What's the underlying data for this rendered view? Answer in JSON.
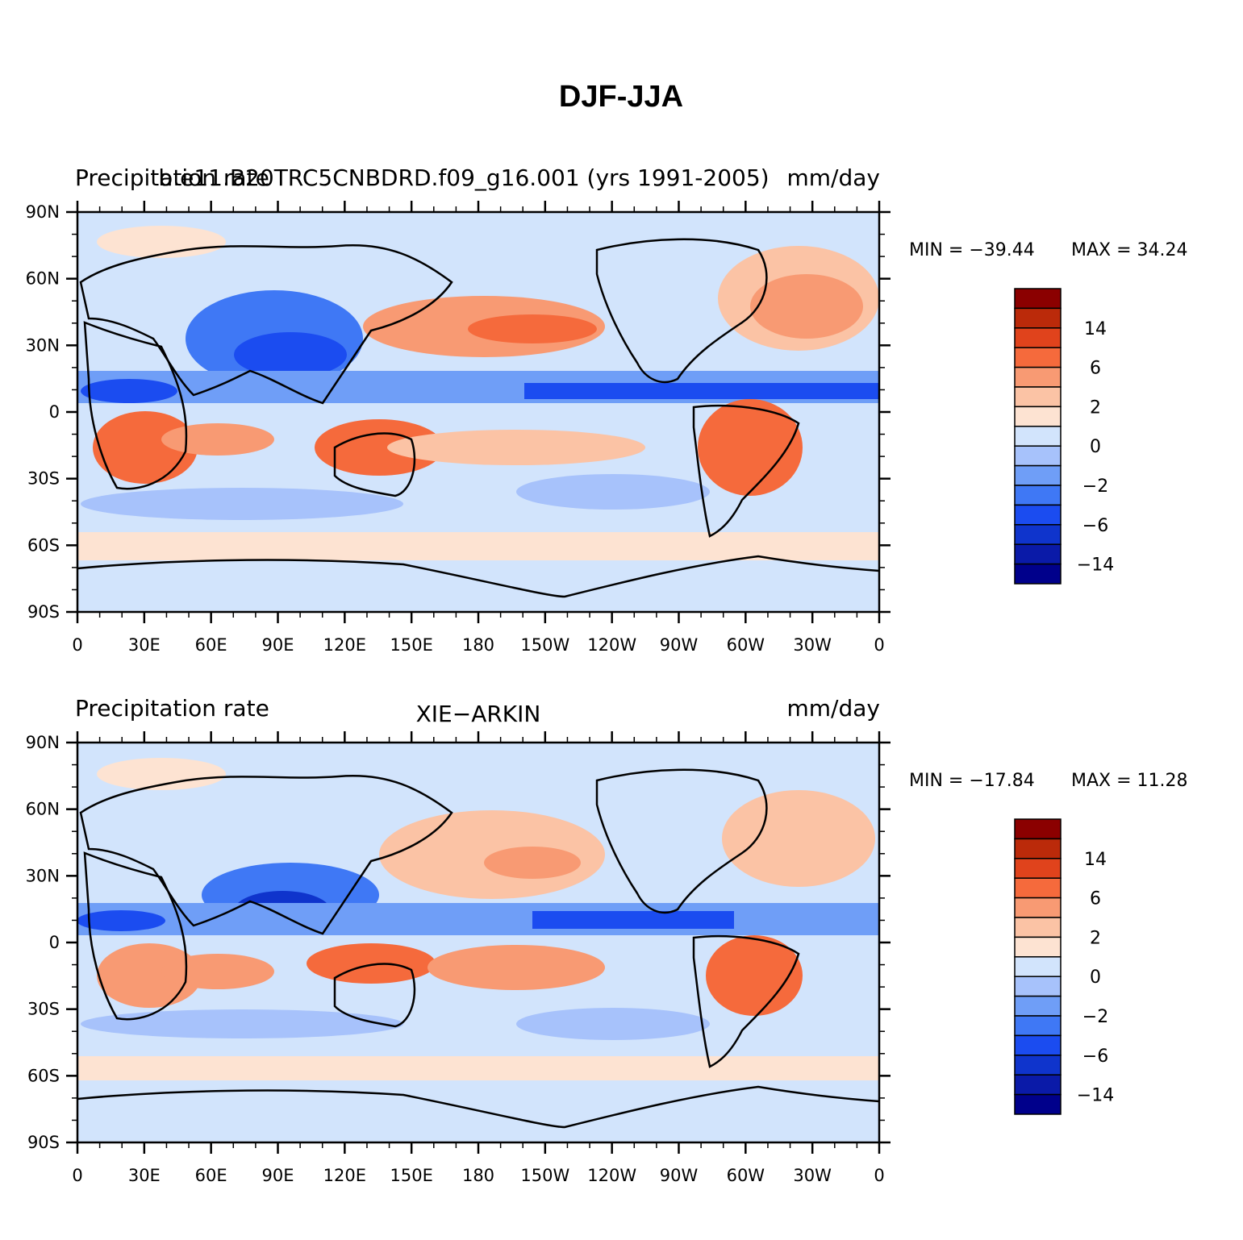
{
  "figure": {
    "title": "DJF-JJA"
  },
  "colors": {
    "levels_palette": [
      "#00008b",
      "#0a1aa8",
      "#0f34cc",
      "#1b4cf0",
      "#3f78f5",
      "#6f9ef7",
      "#a7c2fb",
      "#d2e4fc",
      "#fde3d2",
      "#fbc3a5",
      "#f89a73",
      "#f56a3c",
      "#e0431c",
      "#bb2a0a",
      "#8b0000"
    ],
    "land_outline": "#000000"
  },
  "colorbar": {
    "labels": [
      "14",
      "6",
      "2",
      "0",
      "−2",
      "−6",
      "−14"
    ]
  },
  "panels": [
    {
      "left_text": "Precipitation rate",
      "center_text": "b.e11.B20TRC5CNBDRD.f09_g16.001 (yrs 1991-2005)",
      "right_text": "mm/day",
      "min_label": "MIN = −39.44",
      "max_label": "MAX =   34.24"
    },
    {
      "left_text": "Precipitation rate",
      "center_text": "XIE−ARKIN",
      "right_text": "mm/day",
      "min_label": "MIN = −17.84",
      "max_label": "MAX =   11.28"
    }
  ],
  "axes": {
    "lat_labels": [
      "90N",
      "60N",
      "30N",
      "0",
      "30S",
      "60S",
      "90S"
    ],
    "lon_labels": [
      "0",
      "30E",
      "60E",
      "90E",
      "120E",
      "150E",
      "180",
      "150W",
      "120W",
      "90W",
      "60W",
      "30W",
      "0"
    ]
  },
  "chart_data": [
    {
      "type": "heatmap",
      "title": "Precipitation rate",
      "subtitle": "b.e11.B20TRC5CNBDRD.f09_g16.001 (yrs 1991-2005)",
      "units": "mm/day",
      "x": [
        "0",
        "30E",
        "60E",
        "90E",
        "120E",
        "150E",
        "180",
        "150W",
        "120W",
        "90W",
        "60W",
        "30W",
        "0"
      ],
      "y": [
        "90N",
        "60N",
        "30N",
        "0",
        "30S",
        "60S",
        "90S"
      ],
      "xlim": [
        0,
        360
      ],
      "ylim": [
        -90,
        90
      ],
      "min": -39.44,
      "max": 34.24,
      "contour_levels": [
        -14,
        -6,
        -2,
        0,
        2,
        6,
        14
      ],
      "grid": false,
      "legend": "right colorbar"
    },
    {
      "type": "heatmap",
      "title": "Precipitation rate",
      "subtitle": "XIE−ARKIN",
      "units": "mm/day",
      "x": [
        "0",
        "30E",
        "60E",
        "90E",
        "120E",
        "150E",
        "180",
        "150W",
        "120W",
        "90W",
        "60W",
        "30W",
        "0"
      ],
      "y": [
        "90N",
        "60N",
        "30N",
        "0",
        "30S",
        "60S",
        "90S"
      ],
      "xlim": [
        0,
        360
      ],
      "ylim": [
        -90,
        90
      ],
      "min": -17.84,
      "max": 11.28,
      "contour_levels": [
        -14,
        -6,
        -2,
        0,
        2,
        6,
        14
      ],
      "grid": false,
      "legend": "right colorbar"
    }
  ]
}
